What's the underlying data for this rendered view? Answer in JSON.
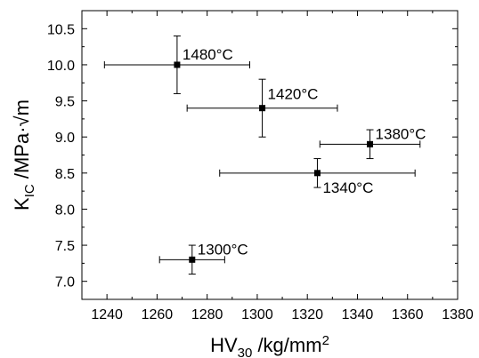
{
  "chart_data": {
    "type": "scatter",
    "xlabel": {
      "main": "HV",
      "sub": "30",
      "rest": " /kg/mm",
      "sup": "2"
    },
    "ylabel": {
      "main": "K",
      "sub": "IC",
      "rest": " /MPa·√m"
    },
    "xlim": [
      1230,
      1380
    ],
    "ylim": [
      6.75,
      10.75
    ],
    "xticks": [
      1240,
      1260,
      1280,
      1300,
      1320,
      1340,
      1360,
      1380
    ],
    "yticks": [
      7.0,
      7.5,
      8.0,
      8.5,
      9.0,
      9.5,
      10.0,
      10.5
    ],
    "ytick_labels": [
      "7.0",
      "7.5",
      "8.0",
      "8.5",
      "9.0",
      "9.5",
      "10.0",
      "10.5"
    ],
    "xtick_labels": [
      "1240",
      "1260",
      "1280",
      "1300",
      "1320",
      "1340",
      "1360",
      "1380"
    ],
    "grid": false,
    "legend": "none",
    "points": [
      {
        "label": "1480°C",
        "x": 1268,
        "y": 10.0,
        "x_err": [
          1239,
          1297
        ],
        "y_err": [
          9.6,
          10.4
        ]
      },
      {
        "label": "1420°C",
        "x": 1302,
        "y": 9.4,
        "x_err": [
          1272,
          1332
        ],
        "y_err": [
          9.0,
          9.8
        ]
      },
      {
        "label": "1380°C",
        "x": 1345,
        "y": 8.9,
        "x_err": [
          1325,
          1365
        ],
        "y_err": [
          8.7,
          9.1
        ]
      },
      {
        "label": "1340°C",
        "x": 1324,
        "y": 8.5,
        "x_err": [
          1285,
          1363
        ],
        "y_err": [
          8.3,
          8.7
        ]
      },
      {
        "label": "1300°C",
        "x": 1274,
        "y": 7.3,
        "x_err": [
          1261,
          1287
        ],
        "y_err": [
          7.1,
          7.5
        ]
      }
    ],
    "color": "#000000"
  }
}
